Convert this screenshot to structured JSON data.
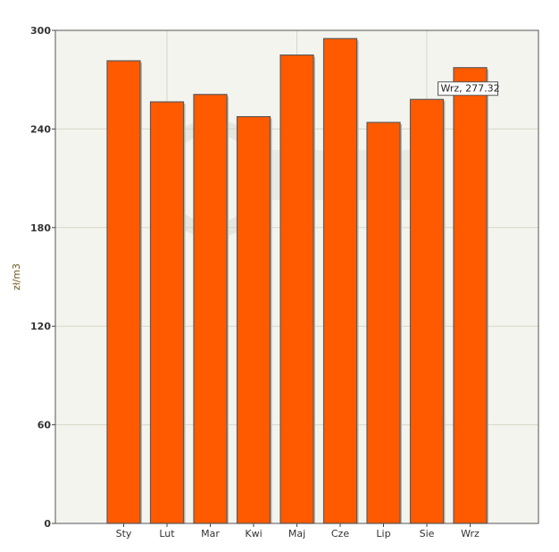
{
  "chart_data": {
    "type": "bar",
    "categories": [
      "Sty",
      "Lut",
      "Mar",
      "Kwi",
      "Maj",
      "Cze",
      "Lip",
      "Sie",
      "Wrz"
    ],
    "values": [
      281.5,
      256.5,
      261,
      247.5,
      285,
      295,
      244,
      258,
      277.32
    ],
    "ylabel": "zł/m3",
    "ylim": [
      0,
      300
    ],
    "yticks": [
      0,
      60,
      120,
      180,
      240,
      300
    ],
    "grid": true,
    "tooltip": {
      "category": "Wrz",
      "text": "Wrz, 277.32"
    },
    "colors": {
      "bar": "#ff5a00",
      "bar_edge": "#5a5a5a",
      "plot_bg": "#f4f4ef",
      "grid": "#d6d6c6",
      "axis_text": "#6b5a1e",
      "tick_text": "#333333",
      "watermark": "#e6e6df"
    }
  }
}
